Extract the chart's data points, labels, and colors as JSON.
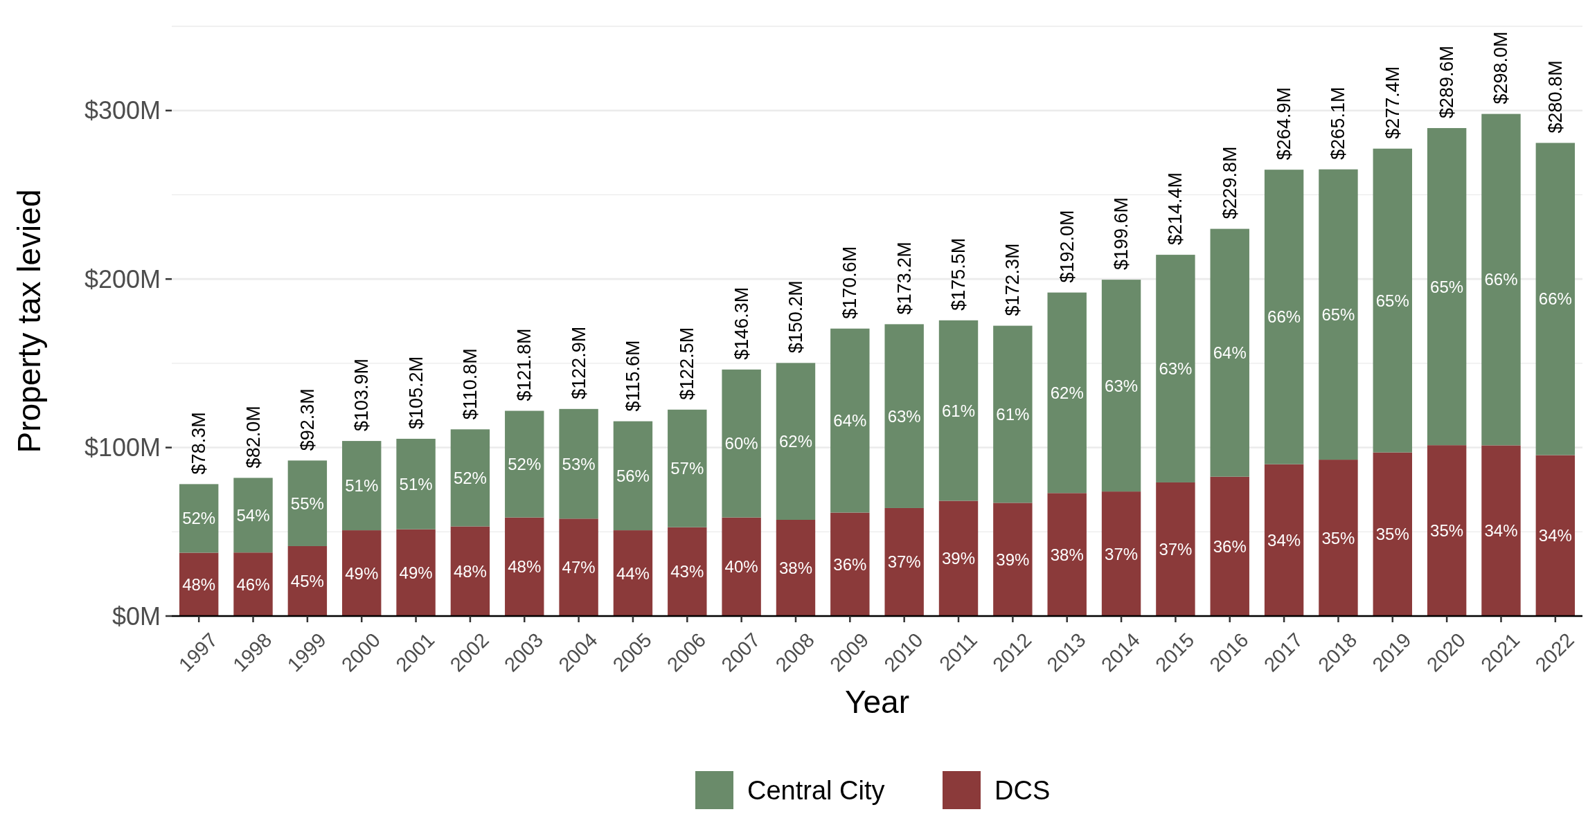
{
  "chart_data": {
    "type": "bar",
    "stacked": true,
    "xlabel": "Year",
    "ylabel": "Property tax levied",
    "categories": [
      "1997",
      "1998",
      "1999",
      "2000",
      "2001",
      "2002",
      "2003",
      "2004",
      "2005",
      "2006",
      "2007",
      "2008",
      "2009",
      "2010",
      "2011",
      "2012",
      "2013",
      "2014",
      "2015",
      "2016",
      "2017",
      "2018",
      "2019",
      "2020",
      "2021",
      "2022"
    ],
    "series": [
      {
        "name": "DCS",
        "color": "#8b3a3a",
        "values": [
          37.6,
          37.7,
          41.5,
          50.9,
          51.5,
          53.2,
          58.5,
          57.8,
          50.9,
          52.7,
          58.5,
          57.1,
          61.4,
          64.1,
          68.4,
          67.2,
          73.0,
          73.9,
          79.3,
          82.7,
          90.1,
          92.8,
          97.1,
          101.4,
          101.3,
          95.5
        ]
      },
      {
        "name": "Central City",
        "color": "#6a8b6a",
        "values": [
          40.7,
          44.3,
          50.8,
          53.0,
          53.7,
          57.6,
          63.3,
          65.1,
          64.7,
          69.8,
          87.8,
          93.1,
          109.2,
          109.1,
          107.1,
          105.1,
          119.0,
          125.7,
          135.1,
          147.1,
          174.8,
          172.3,
          180.3,
          188.2,
          196.7,
          185.3
        ]
      }
    ],
    "annotations": [
      "48%",
      "46%",
      "45%",
      "49%",
      "49%",
      "48%",
      "48%",
      "47%",
      "44%",
      "43%",
      "40%",
      "38%",
      "36%",
      "37%",
      "39%",
      "39%",
      "38%",
      "37%",
      "37%",
      "36%",
      "34%",
      "35%",
      "35%",
      "35%",
      "34%",
      "34%",
      "52%",
      "54%",
      "55%",
      "51%",
      "51%",
      "52%",
      "52%",
      "53%",
      "56%",
      "57%",
      "60%",
      "62%",
      "64%",
      "63%",
      "61%",
      "61%",
      "62%",
      "63%",
      "63%",
      "64%",
      "66%",
      "65%",
      "65%",
      "65%",
      "66%",
      "66%"
    ],
    "totals": [
      "$78.3M",
      "$82.0M",
      "$92.3M",
      "$103.9M",
      "$105.2M",
      "$110.8M",
      "$121.8M",
      "$122.9M",
      "$115.6M",
      "$122.5M",
      "$146.3M",
      "$150.2M",
      "$170.6M",
      "$173.2M",
      "$175.5M",
      "$172.3M",
      "$192.0M",
      "$199.6M",
      "$214.4M",
      "$229.8M",
      "$264.9M",
      "$265.1M",
      "$277.4M",
      "$289.6M",
      "$298.0M",
      "$280.8M"
    ],
    "ylim": [
      0,
      350
    ],
    "yticks": [
      {
        "value": 0,
        "label": "$0M"
      },
      {
        "value": 50,
        "label": null
      },
      {
        "value": 100,
        "label": "$100M"
      },
      {
        "value": 150,
        "label": null
      },
      {
        "value": 200,
        "label": "$200M"
      },
      {
        "value": 250,
        "label": null
      },
      {
        "value": 300,
        "label": "$300M"
      },
      {
        "value": 350,
        "label": null
      }
    ],
    "grid": "y",
    "legend": "bottom"
  }
}
